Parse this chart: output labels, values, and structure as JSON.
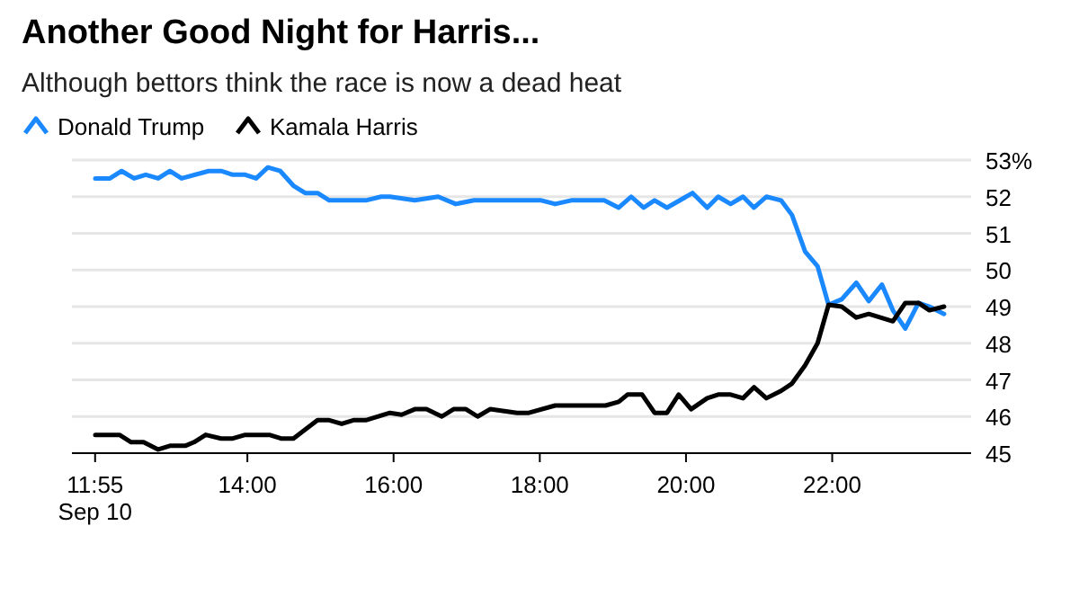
{
  "chart_data": {
    "type": "line",
    "title": "Another Good Night for Harris...",
    "subtitle": "Although bettors think the race is now a dead heat",
    "legend": "top left",
    "grid": "y",
    "marker": "none",
    "line_style": "solid",
    "xlim": [
      11.6,
      23.9
    ],
    "xticks": [
      {
        "value": 11.917,
        "label": "11:55\nSep 10"
      },
      {
        "value": 14,
        "label": "14:00"
      },
      {
        "value": 16,
        "label": "16:00"
      },
      {
        "value": 18,
        "label": "18:00"
      },
      {
        "value": 20,
        "label": "20:00"
      },
      {
        "value": 22,
        "label": "22:00"
      }
    ],
    "ylim": [
      45,
      53
    ],
    "yticks": [
      45,
      46,
      47,
      48,
      49,
      50,
      51,
      52,
      {
        "value": 53,
        "label": "53%"
      }
    ],
    "series": [
      {
        "name": "Donald Trump",
        "color": "#1a88ff",
        "x": [
          11.92,
          12.12,
          12.28,
          12.45,
          12.61,
          12.78,
          12.94,
          13.1,
          13.47,
          13.64,
          13.8,
          13.97,
          14.12,
          14.28,
          14.45,
          14.63,
          14.79,
          14.96,
          15.12,
          15.62,
          15.83,
          15.95,
          16.29,
          16.61,
          16.85,
          17.1,
          18.02,
          18.21,
          18.43,
          18.88,
          19.08,
          19.25,
          19.42,
          19.57,
          19.74,
          20.09,
          20.29,
          20.44,
          20.61,
          20.78,
          20.93,
          21.1,
          21.3,
          21.45,
          21.63,
          21.8,
          21.95,
          22.13,
          22.33,
          22.5,
          22.68,
          22.83,
          23.0,
          23.18,
          23.33,
          23.53
        ],
        "values": [
          52.5,
          52.5,
          52.7,
          52.5,
          52.6,
          52.5,
          52.7,
          52.5,
          52.7,
          52.7,
          52.6,
          52.6,
          52.5,
          52.8,
          52.7,
          52.3,
          52.1,
          52.1,
          51.9,
          51.9,
          52.0,
          52.0,
          51.9,
          52.0,
          51.8,
          51.9,
          51.9,
          51.8,
          51.9,
          51.9,
          51.7,
          52.0,
          51.7,
          51.9,
          51.7,
          52.1,
          51.7,
          52.0,
          51.8,
          52.0,
          51.7,
          52.0,
          51.9,
          51.5,
          50.5,
          50.1,
          49.05,
          49.2,
          49.65,
          49.15,
          49.6,
          48.9,
          48.4,
          49.1,
          49.0,
          48.8
        ]
      },
      {
        "name": "Kamala Harris",
        "color": "#000000",
        "x": [
          11.92,
          12.25,
          12.41,
          12.58,
          12.78,
          12.94,
          13.15,
          13.27,
          13.43,
          13.64,
          13.8,
          13.97,
          14.3,
          14.46,
          14.63,
          14.96,
          15.12,
          15.29,
          15.45,
          15.62,
          15.95,
          16.11,
          16.29,
          16.45,
          16.66,
          16.82,
          16.99,
          17.15,
          17.32,
          17.69,
          17.85,
          18.21,
          18.9,
          19.08,
          19.2,
          19.4,
          19.57,
          19.74,
          19.9,
          20.07,
          20.29,
          20.44,
          20.61,
          20.78,
          20.93,
          21.1,
          21.3,
          21.45,
          21.63,
          21.8,
          21.95,
          22.13,
          22.33,
          22.5,
          22.83,
          23.0,
          23.18,
          23.33,
          23.53
        ],
        "values": [
          45.5,
          45.5,
          45.3,
          45.3,
          45.1,
          45.2,
          45.2,
          45.3,
          45.5,
          45.4,
          45.4,
          45.5,
          45.5,
          45.4,
          45.4,
          45.9,
          45.9,
          45.8,
          45.9,
          45.9,
          46.1,
          46.05,
          46.2,
          46.2,
          46.0,
          46.2,
          46.2,
          46.0,
          46.2,
          46.1,
          46.1,
          46.3,
          46.3,
          46.4,
          46.6,
          46.6,
          46.1,
          46.1,
          46.6,
          46.2,
          46.5,
          46.6,
          46.6,
          46.5,
          46.8,
          46.5,
          46.7,
          46.9,
          47.4,
          48.0,
          49.05,
          49.0,
          48.7,
          48.8,
          48.6,
          49.1,
          49.1,
          48.9,
          49.0
        ]
      }
    ]
  }
}
